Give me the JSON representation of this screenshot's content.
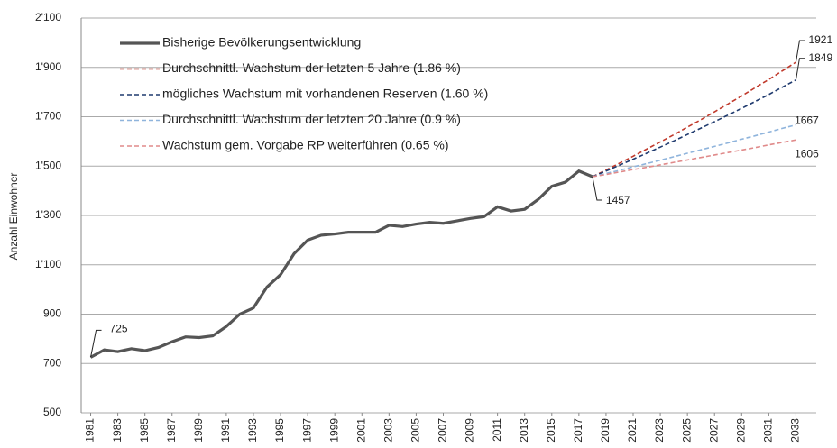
{
  "chart_data": {
    "type": "line",
    "ylabel": "Anzahl Einwohner",
    "xlim": [
      1980.3,
      2034.5
    ],
    "xticks": [
      1981,
      1983,
      1985,
      1987,
      1989,
      1991,
      1993,
      1995,
      1997,
      1999,
      2001,
      2003,
      2005,
      2007,
      2009,
      2011,
      2013,
      2015,
      2017,
      2019,
      2021,
      2023,
      2025,
      2027,
      2029,
      2031,
      2033
    ],
    "ylim": [
      500,
      2100
    ],
    "yticks": [
      500,
      700,
      900,
      {
        "value": 1100,
        "label": "1'100"
      },
      {
        "value": 1300,
        "label": "1'300"
      },
      {
        "value": 1500,
        "label": "1'500"
      },
      {
        "value": 1700,
        "label": "1'700"
      },
      {
        "value": 1900,
        "label": "1'900"
      },
      {
        "value": 2100,
        "label": "2'100"
      }
    ],
    "grid": true,
    "legend": "top-left",
    "series": [
      {
        "name": "Bisherige Bevölkerungsentwicklung",
        "color": "#555555",
        "dashed": false,
        "x": [
          1981,
          1982,
          1983,
          1984,
          1985,
          1986,
          1987,
          1988,
          1989,
          1990,
          1991,
          1992,
          1993,
          1994,
          1995,
          1996,
          1997,
          1998,
          1999,
          2000,
          2001,
          2002,
          2003,
          2004,
          2005,
          2006,
          2007,
          2008,
          2009,
          2010,
          2011,
          2012,
          2013,
          2014,
          2015,
          2016,
          2017,
          2018
        ],
        "values": [
          725,
          755,
          748,
          760,
          752,
          765,
          788,
          808,
          805,
          812,
          850,
          900,
          925,
          1010,
          1060,
          1145,
          1200,
          1220,
          1225,
          1232,
          1232,
          1232,
          1260,
          1255,
          1265,
          1272,
          1268,
          1278,
          1288,
          1295,
          1335,
          1318,
          1325,
          1365,
          1418,
          1435,
          1480,
          1457
        ]
      },
      {
        "name": "Durchschnittl. Wachstum der letzten 5 Jahre (1.86 %)",
        "color": "#c0392b",
        "dashed": true,
        "x": [
          2018,
          2019,
          2020,
          2021,
          2022,
          2023,
          2024,
          2025,
          2026,
          2027,
          2028,
          2029,
          2030,
          2031,
          2032,
          2033
        ],
        "values": [
          1457,
          1484,
          1512,
          1540,
          1569,
          1598,
          1627,
          1658,
          1688,
          1720,
          1752,
          1784,
          1818,
          1851,
          1886,
          1921
        ]
      },
      {
        "name": "mögliches Wachstum mit vorhandenen Reserven (1.60 %)",
        "color": "#1f3a6e",
        "dashed": true,
        "x": [
          2018,
          2019,
          2020,
          2021,
          2022,
          2023,
          2024,
          2025,
          2026,
          2027,
          2028,
          2029,
          2030,
          2031,
          2032,
          2033
        ],
        "values": [
          1457,
          1480,
          1504,
          1528,
          1552,
          1577,
          1602,
          1628,
          1654,
          1680,
          1707,
          1734,
          1762,
          1790,
          1820,
          1849
        ]
      },
      {
        "name": "Durchschnittl. Wachstum der letzten 20 Jahre (0.9 %)",
        "color": "#8fb4dc",
        "dashed": true,
        "x": [
          2018,
          2019,
          2020,
          2021,
          2022,
          2023,
          2024,
          2025,
          2026,
          2027,
          2028,
          2029,
          2030,
          2031,
          2032,
          2033
        ],
        "values": [
          1457,
          1470,
          1483,
          1497,
          1510,
          1524,
          1538,
          1552,
          1566,
          1580,
          1594,
          1609,
          1623,
          1638,
          1653,
          1667
        ]
      },
      {
        "name": "Wachstum gem. Vorgabe RP weiterführen (0.65 %)",
        "color": "#e08a8a",
        "dashed": true,
        "x": [
          2018,
          2019,
          2020,
          2021,
          2022,
          2023,
          2024,
          2025,
          2026,
          2027,
          2028,
          2029,
          2030,
          2031,
          2032,
          2033
        ],
        "values": [
          1457,
          1466,
          1476,
          1486,
          1495,
          1505,
          1515,
          1525,
          1535,
          1545,
          1555,
          1565,
          1575,
          1586,
          1596,
          1606
        ]
      }
    ]
  }
}
